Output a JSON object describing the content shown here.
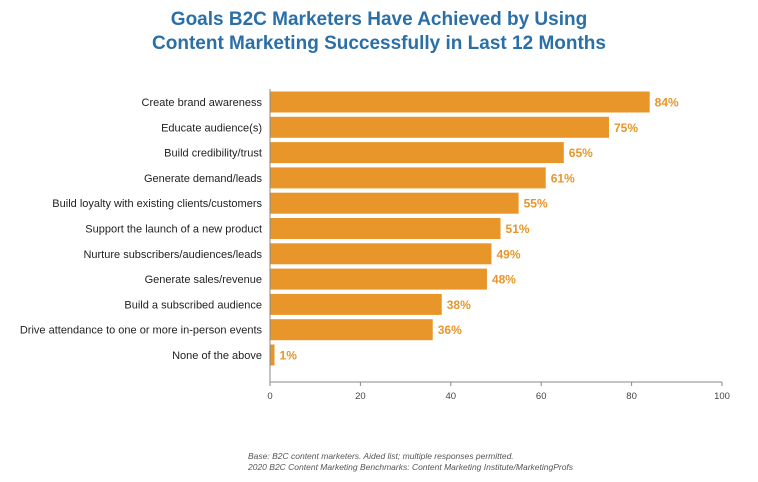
{
  "chart_data": {
    "type": "bar",
    "orientation": "horizontal",
    "title_line1": "Goals B2C Marketers Have Achieved by Using",
    "title_line2": "Content Marketing Successfully in Last 12 Months",
    "categories": [
      "Create brand awareness",
      "Educate audience(s)",
      "Build credibility/trust",
      "Generate demand/leads",
      "Build loyalty with existing clients/customers",
      "Support the launch of a new product",
      "Nurture subscribers/audiences/leads",
      "Generate sales/revenue",
      "Build a subscribed audience",
      "Drive attendance to one or more in-person events",
      "None of the above"
    ],
    "values": [
      84,
      75,
      65,
      61,
      55,
      51,
      49,
      48,
      38,
      36,
      1
    ],
    "value_labels": [
      "84%",
      "75%",
      "65%",
      "61%",
      "55%",
      "51%",
      "49%",
      "48%",
      "38%",
      "36%",
      "1%"
    ],
    "xlim": [
      0,
      100
    ],
    "xticks": [
      0,
      20,
      40,
      60,
      80,
      100
    ],
    "grid": false,
    "bar_color": "#e8962a",
    "title_color": "#2a6fa8"
  },
  "footer": {
    "line1": "Base: B2C content marketers. Aided list; multiple responses permitted.",
    "line2": "2020 B2C Content Marketing Benchmarks: Content Marketing Institute/MarketingProfs"
  }
}
